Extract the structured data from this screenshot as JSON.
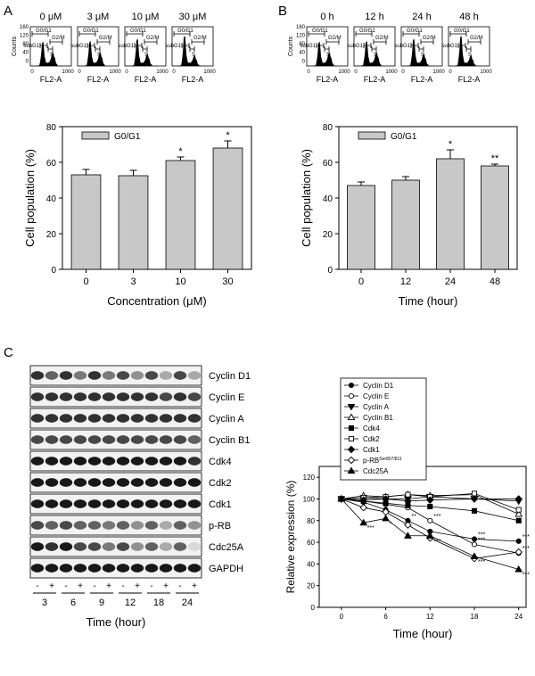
{
  "panel_labels": {
    "a": "A",
    "b": "B",
    "c": "C"
  },
  "panel_a": {
    "histograms": {
      "titles": [
        "0 μM",
        "3 μM",
        "10 μM",
        "30 μM"
      ],
      "gate_labels": {
        "g0g1": "G0/G1",
        "g2m": "G2/M",
        "subg1": "subG1",
        "s": "S"
      },
      "ylabel": "Counts",
      "yticks": [
        "160",
        "120",
        "80",
        "40",
        "0"
      ],
      "xticks": [
        "0",
        "1000"
      ],
      "xlabel": "FL2-A"
    },
    "bar_chart": {
      "type": "bar",
      "legend": "G0/G1",
      "categories": [
        "0",
        "3",
        "10",
        "30"
      ],
      "values": [
        53,
        52.5,
        61,
        68
      ],
      "errors": [
        3,
        3,
        2,
        4
      ],
      "sig": [
        "",
        "",
        "*",
        "*"
      ],
      "ylabel": "Cell population (%)",
      "xlabel": "Concentration (μM)",
      "ylim": [
        0,
        80
      ],
      "yticks": [
        0,
        20,
        40,
        60,
        80
      ]
    }
  },
  "panel_b": {
    "histograms": {
      "titles": [
        "0 h",
        "12 h",
        "24 h",
        "48 h"
      ],
      "gate_labels": {
        "g0g1": "G0/G1",
        "g2m": "G2/M",
        "subg1": "subG1",
        "s": "S"
      },
      "ylabel": "Counts",
      "yticks": [
        "160",
        "120",
        "80",
        "40",
        "0"
      ],
      "xticks": [
        "0",
        "1000"
      ],
      "xlabel": "FL2-A"
    },
    "bar_chart": {
      "type": "bar",
      "legend": "G0/G1",
      "categories": [
        "0",
        "12",
        "24",
        "48"
      ],
      "values": [
        47,
        50,
        62,
        58
      ],
      "errors": [
        2,
        2,
        5,
        1
      ],
      "sig": [
        "",
        "",
        "*",
        "**"
      ],
      "ylabel": "Cell population (%)",
      "xlabel": "Time (hour)",
      "ylim": [
        0,
        80
      ],
      "yticks": [
        0,
        20,
        40,
        60,
        80
      ]
    }
  },
  "panel_c": {
    "blot_labels": [
      "Cyclin D1",
      "Cyclin E",
      "Cyclin A",
      "Cyclin B1",
      "Cdk4",
      "Cdk2",
      "Cdk1",
      "p-RB",
      "Cdc25A",
      "GAPDH"
    ],
    "lane_signs": [
      "-",
      "+",
      "-",
      "+",
      "-",
      "+",
      "-",
      "+",
      "-",
      "+",
      "-",
      "+"
    ],
    "time_points": [
      "3",
      "6",
      "9",
      "12",
      "18",
      "24"
    ],
    "xlabel": "Time (hour)"
  },
  "chart_data": {
    "type": "line",
    "x": [
      0,
      3,
      6,
      9,
      12,
      18,
      24
    ],
    "xticks": [
      0,
      6,
      12,
      18,
      24
    ],
    "yticks": [
      0,
      20,
      40,
      60,
      80,
      100,
      120
    ],
    "xlim": [
      -3,
      25
    ],
    "ylim": [
      0,
      130
    ],
    "xlabel": "Time (hour)",
    "ylabel": "Relative expression (%)",
    "series": [
      {
        "name": "Cyclin D1",
        "marker": "circle-filled",
        "values": [
          100,
          97,
          90,
          80,
          70,
          63,
          61
        ],
        "labels": [
          "",
          "",
          "",
          "**",
          "",
          "***",
          "***"
        ]
      },
      {
        "name": "Cyclin E",
        "marker": "circle-open",
        "values": [
          100,
          98,
          95,
          92,
          80,
          58,
          50
        ],
        "labels": [
          "",
          "",
          "",
          "",
          "***",
          "***",
          "***"
        ]
      },
      {
        "name": "Cyclin A",
        "marker": "triangle-down-filled",
        "values": [
          100,
          101,
          100,
          100,
          102,
          100,
          98
        ],
        "labels": [
          "",
          "",
          "",
          "",
          "",
          "",
          ""
        ]
      },
      {
        "name": "Cyclin B1",
        "marker": "triangle-up-open",
        "values": [
          100,
          103,
          102,
          104,
          103,
          104,
          86
        ],
        "labels": [
          "",
          "",
          "",
          "",
          "",
          "",
          ""
        ]
      },
      {
        "name": "Cdk4",
        "marker": "square-filled",
        "values": [
          100,
          98,
          96,
          94,
          93,
          89,
          80
        ],
        "labels": [
          "",
          "",
          "",
          "",
          "",
          "",
          ""
        ]
      },
      {
        "name": "Cdk2",
        "marker": "square-open",
        "values": [
          100,
          101,
          102,
          104,
          102,
          105,
          90
        ],
        "labels": [
          "",
          "",
          "",
          "",
          "",
          "",
          ""
        ]
      },
      {
        "name": "Cdk1",
        "marker": "diamond-filled",
        "values": [
          100,
          99,
          100,
          98,
          99,
          100,
          100
        ],
        "labels": [
          "",
          "",
          "",
          "",
          "",
          "",
          ""
        ]
      },
      {
        "name": "p-RB",
        "name_sup": "Ser807/811",
        "marker": "diamond-open",
        "values": [
          100,
          92,
          88,
          76,
          64,
          45,
          51
        ],
        "labels": [
          "",
          "",
          "",
          "",
          "",
          "",
          ""
        ]
      },
      {
        "name": "Cdc25A",
        "marker": "triangle-up-filled",
        "values": [
          100,
          78,
          82,
          66,
          66,
          47,
          35
        ],
        "labels": [
          "",
          "***",
          "*",
          "",
          "***",
          "***",
          "***"
        ]
      }
    ]
  }
}
